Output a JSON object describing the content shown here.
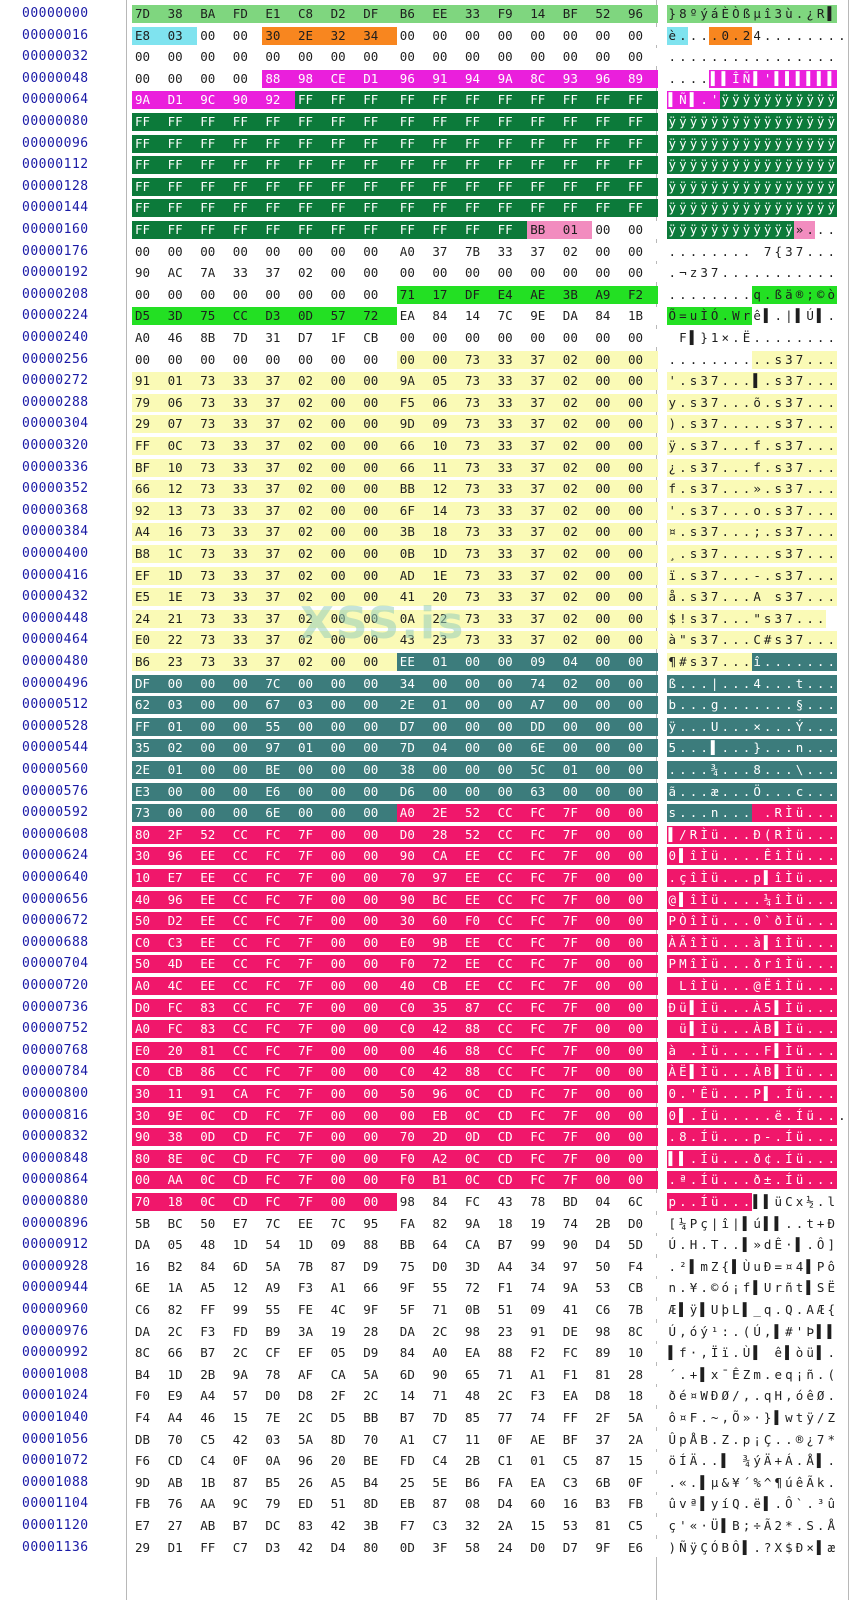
{
  "hex_editor": {
    "watermark": "XSS.is",
    "colors": {
      "lime": "#7fd67f",
      "cyan": "#7fe3ef",
      "orange": "#f8861f",
      "magenta": "#ea1fdc",
      "darkgreen": "#0c7a3a",
      "pink": "#f28cbf",
      "green": "#23e023",
      "yellow": "#fafab6",
      "teal": "#3c7c7c",
      "hotpink": "#f0176b",
      "white": "#ffffff"
    },
    "rows": [
      {
        "offset": "00000000",
        "bytes": "7D 38 BA FD E1 C8 D2 DF B6 EE 33 F9 14 BF 52 96",
        "ascii": "}8ºýáÈÒßµî3ù.¿R▌",
        "colors": "lime*16"
      },
      {
        "offset": "00000016",
        "bytes": "E8 03 00 00 30 2E 32 34 00 00 00 00 00 00 00 00",
        "ascii": "è....0.24........",
        "colors": "cyan,cyan,white,white,orange,orange,orange,orange,white*8"
      },
      {
        "offset": "00000032",
        "bytes": "00 00 00 00 00 00 00 00 00 00 00 00 00 00 00 00",
        "ascii": "................",
        "colors": "white*16"
      },
      {
        "offset": "00000048",
        "bytes": "00 00 00 00 88 98 CE D1 96 91 94 9A 8C 93 96 89",
        "ascii": "....▌▌ÎÑ▌'▌▌▌▌▌▌",
        "colors": "white*4,magenta*12"
      },
      {
        "offset": "00000064",
        "bytes": "9A D1 9C 90 92 FF FF FF FF FF FF FF FF FF FF FF",
        "ascii": "▌Ñ▌.'ÿÿÿÿÿÿÿÿÿÿÿ",
        "colors": "magenta*5,darkgreen*11"
      },
      {
        "offset": "00000080",
        "bytes": "FF FF FF FF FF FF FF FF FF FF FF FF FF FF FF FF",
        "ascii": "ÿÿÿÿÿÿÿÿÿÿÿÿÿÿÿÿ",
        "colors": "darkgreen*16"
      },
      {
        "offset": "00000096",
        "bytes": "FF FF FF FF FF FF FF FF FF FF FF FF FF FF FF FF",
        "ascii": "ÿÿÿÿÿÿÿÿÿÿÿÿÿÿÿÿ",
        "colors": "darkgreen*16"
      },
      {
        "offset": "00000112",
        "bytes": "FF FF FF FF FF FF FF FF FF FF FF FF FF FF FF FF",
        "ascii": "ÿÿÿÿÿÿÿÿÿÿÿÿÿÿÿÿ",
        "colors": "darkgreen*16"
      },
      {
        "offset": "00000128",
        "bytes": "FF FF FF FF FF FF FF FF FF FF FF FF FF FF FF FF",
        "ascii": "ÿÿÿÿÿÿÿÿÿÿÿÿÿÿÿÿ",
        "colors": "darkgreen*16"
      },
      {
        "offset": "00000144",
        "bytes": "FF FF FF FF FF FF FF FF FF FF FF FF FF FF FF FF",
        "ascii": "ÿÿÿÿÿÿÿÿÿÿÿÿÿÿÿÿ",
        "colors": "darkgreen*16"
      },
      {
        "offset": "00000160",
        "bytes": "FF FF FF FF FF FF FF FF FF FF FF FF BB 01 00 00",
        "ascii": "ÿÿÿÿÿÿÿÿÿÿÿÿ»...",
        "colors": "darkgreen*12,pink,pink,white,white"
      },
      {
        "offset": "00000176",
        "bytes": "00 00 00 00 00 00 00 00 A0 37 7B 33 37 02 00 00",
        "ascii": "........ 7{37...",
        "colors": "white*16"
      },
      {
        "offset": "00000192",
        "bytes": "90 AC 7A 33 37 02 00 00 00 00 00 00 00 00 00 00",
        "ascii": ".¬z37...........",
        "colors": "white*16"
      },
      {
        "offset": "00000208",
        "bytes": "00 00 00 00 00 00 00 00 71 17 DF E4 AE 3B A9 F2",
        "ascii": "........q.ßä®;©ò",
        "colors": "white*8,green*8"
      },
      {
        "offset": "00000224",
        "bytes": "D5 3D 75 CC D3 0D 57 72 EA 84 14 7C 9E DA 84 1B",
        "ascii": "Õ=uÌÓ.Wrê▌.|▌Ú▌.",
        "colors": "green*8,white*8"
      },
      {
        "offset": "00000240",
        "bytes": "A0 46 8B 7D 31 D7 1F CB 00 00 00 00 00 00 00 00",
        "ascii": " F▌}1×.Ë........",
        "colors": "white*16"
      },
      {
        "offset": "00000256",
        "bytes": "00 00 00 00 00 00 00 00 00 00 73 33 37 02 00 00",
        "ascii": "..........s37...",
        "colors": "white*8,yellow*8"
      },
      {
        "offset": "00000272",
        "bytes": "91 01 73 33 37 02 00 00 9A 05 73 33 37 02 00 00",
        "ascii": "'.s37...▌.s37...",
        "colors": "yellow*16"
      },
      {
        "offset": "00000288",
        "bytes": "79 06 73 33 37 02 00 00 F5 06 73 33 37 02 00 00",
        "ascii": "y.s37...õ.s37...",
        "colors": "yellow*16"
      },
      {
        "offset": "00000304",
        "bytes": "29 07 73 33 37 02 00 00 9D 09 73 33 37 02 00 00",
        "ascii": ").s37.....s37...",
        "colors": "yellow*16"
      },
      {
        "offset": "00000320",
        "bytes": "FF 0C 73 33 37 02 00 00 66 10 73 33 37 02 00 00",
        "ascii": "ÿ.s37...f.s37...",
        "colors": "yellow*16"
      },
      {
        "offset": "00000336",
        "bytes": "BF 10 73 33 37 02 00 00 66 11 73 33 37 02 00 00",
        "ascii": "¿.s37...f.s37...",
        "colors": "yellow*16"
      },
      {
        "offset": "00000352",
        "bytes": "66 12 73 33 37 02 00 00 BB 12 73 33 37 02 00 00",
        "ascii": "f.s37...».s37...",
        "colors": "yellow*16"
      },
      {
        "offset": "00000368",
        "bytes": "92 13 73 33 37 02 00 00 6F 14 73 33 37 02 00 00",
        "ascii": "'.s37...o.s37...",
        "colors": "yellow*16"
      },
      {
        "offset": "00000384",
        "bytes": "A4 16 73 33 37 02 00 00 3B 18 73 33 37 02 00 00",
        "ascii": "¤.s37...;.s37...",
        "colors": "yellow*16"
      },
      {
        "offset": "00000400",
        "bytes": "B8 1C 73 33 37 02 00 00 0B 1D 73 33 37 02 00 00",
        "ascii": "¸.s37.....s37...",
        "colors": "yellow*16"
      },
      {
        "offset": "00000416",
        "bytes": "EF 1D 73 33 37 02 00 00 AD 1E 73 33 37 02 00 00",
        "ascii": "ï.s37...-.s37...",
        "colors": "yellow*16"
      },
      {
        "offset": "00000432",
        "bytes": "E5 1E 73 33 37 02 00 00 41 20 73 33 37 02 00 00",
        "ascii": "å.s37...A s37...",
        "colors": "yellow*16"
      },
      {
        "offset": "00000448",
        "bytes": "24 21 73 33 37 02 00 00 0A 22 73 33 37 02 00 00",
        "ascii": "$!s37...\"s37...",
        "colors": "yellow*16"
      },
      {
        "offset": "00000464",
        "bytes": "E0 22 73 33 37 02 00 00 43 23 73 33 37 02 00 00",
        "ascii": "à\"s37...C#s37...",
        "colors": "yellow*16"
      },
      {
        "offset": "00000480",
        "bytes": "B6 23 73 33 37 02 00 00 EE 01 00 00 09 04 00 00",
        "ascii": "¶#s37...î.......",
        "colors": "yellow*8,teal*8"
      },
      {
        "offset": "00000496",
        "bytes": "DF 00 00 00 7C 00 00 00 34 00 00 00 74 02 00 00",
        "ascii": "ß...|...4...t...",
        "colors": "teal*16"
      },
      {
        "offset": "00000512",
        "bytes": "62 03 00 00 67 03 00 00 2E 01 00 00 A7 00 00 00",
        "ascii": "b...g.......§...",
        "colors": "teal*16"
      },
      {
        "offset": "00000528",
        "bytes": "FF 01 00 00 55 00 00 00 D7 00 00 00 DD 00 00 00",
        "ascii": "ÿ...U...×...Ý...",
        "colors": "teal*16"
      },
      {
        "offset": "00000544",
        "bytes": "35 02 00 00 97 01 00 00 7D 04 00 00 6E 00 00 00",
        "ascii": "5...▌...}...n...",
        "colors": "teal*16"
      },
      {
        "offset": "00000560",
        "bytes": "2E 01 00 00 BE 00 00 00 38 00 00 00 5C 01 00 00",
        "ascii": "....¾...8...\\...",
        "colors": "teal*16"
      },
      {
        "offset": "00000576",
        "bytes": "E3 00 00 00 E6 00 00 00 D6 00 00 00 63 00 00 00",
        "ascii": "ã...æ...Ö...c...",
        "colors": "teal*16"
      },
      {
        "offset": "00000592",
        "bytes": "73 00 00 00 6E 00 00 00 A0 2E 52 CC FC 7F 00 00",
        "ascii": "s...n... .RÌü...",
        "colors": "teal*8,hotpink*8"
      },
      {
        "offset": "00000608",
        "bytes": "80 2F 52 CC FC 7F 00 00 D0 28 52 CC FC 7F 00 00",
        "ascii": "▌/RÌü...Ð(RÌü...",
        "colors": "hotpink*16"
      },
      {
        "offset": "00000624",
        "bytes": "30 96 EE CC FC 7F 00 00 90 CA EE CC FC 7F 00 00",
        "ascii": "0▌îÌü....ÊîÌü...",
        "colors": "hotpink*16"
      },
      {
        "offset": "00000640",
        "bytes": "10 E7 EE CC FC 7F 00 00 70 97 EE CC FC 7F 00 00",
        "ascii": ".çîÌü...p▌îÌü...",
        "colors": "hotpink*16"
      },
      {
        "offset": "00000656",
        "bytes": "40 96 EE CC FC 7F 00 00 90 BC EE CC FC 7F 00 00",
        "ascii": "@▌îÌü....¼îÌü...",
        "colors": "hotpink*16"
      },
      {
        "offset": "00000672",
        "bytes": "50 D2 EE CC FC 7F 00 00 30 60 F0 CC FC 7F 00 00",
        "ascii": "PÒîÌü...0`ðÌü...",
        "colors": "hotpink*16"
      },
      {
        "offset": "00000688",
        "bytes": "C0 C3 EE CC FC 7F 00 00 E0 9B EE CC FC 7F 00 00",
        "ascii": "ÀÃîÌü...à▌îÌü...",
        "colors": "hotpink*16"
      },
      {
        "offset": "00000704",
        "bytes": "50 4D EE CC FC 7F 00 00 F0 72 EE CC FC 7F 00 00",
        "ascii": "PMîÌü...ðrîÌü...",
        "colors": "hotpink*16"
      },
      {
        "offset": "00000720",
        "bytes": "A0 4C EE CC FC 7F 00 00 40 CB EE CC FC 7F 00 00",
        "ascii": " LîÌü...@ËîÌü...",
        "colors": "hotpink*16"
      },
      {
        "offset": "00000736",
        "bytes": "D0 FC 83 CC FC 7F 00 00 C0 35 87 CC FC 7F 00 00",
        "ascii": "Ðü▌Ìü...À5▌Ìü...",
        "colors": "hotpink*16"
      },
      {
        "offset": "00000752",
        "bytes": "A0 FC 83 CC FC 7F 00 00 C0 42 88 CC FC 7F 00 00",
        "ascii": " ü▌Ìü...ÀB▌Ìü...",
        "colors": "hotpink*16"
      },
      {
        "offset": "00000768",
        "bytes": "E0 20 81 CC FC 7F 00 00 00 46 88 CC FC 7F 00 00",
        "ascii": "à .Ìü....F▌Ìü...",
        "colors": "hotpink*16"
      },
      {
        "offset": "00000784",
        "bytes": "C0 CB 86 CC FC 7F 00 00 C0 42 88 CC FC 7F 00 00",
        "ascii": "ÀË▌Ìü...ÀB▌Ìü...",
        "colors": "hotpink*16"
      },
      {
        "offset": "00000800",
        "bytes": "30 11 91 CA FC 7F 00 00 50 96 0C CD FC 7F 00 00",
        "ascii": "0.'Êü...P▌.Íü...",
        "colors": "hotpink*16"
      },
      {
        "offset": "00000816",
        "bytes": "30 9E 0C CD FC 7F 00 00 00 EB 0C CD FC 7F 00 00",
        "ascii": "0▌.Íü.....ë.Íü...",
        "colors": "hotpink*16"
      },
      {
        "offset": "00000832",
        "bytes": "90 38 0D CD FC 7F 00 00 70 2D 0D CD FC 7F 00 00",
        "ascii": ".8.Íü...p-.Íü...",
        "colors": "hotpink*16"
      },
      {
        "offset": "00000848",
        "bytes": "80 8E 0C CD FC 7F 00 00 F0 A2 0C CD FC 7F 00 00",
        "ascii": "▌▌.Íü...ð¢.Íü...",
        "colors": "hotpink*16"
      },
      {
        "offset": "00000864",
        "bytes": "00 AA 0C CD FC 7F 00 00 F0 B1 0C CD FC 7F 00 00",
        "ascii": ".ª.Íü...ð±.Íü...",
        "colors": "hotpink*16"
      },
      {
        "offset": "00000880",
        "bytes": "70 18 0C CD FC 7F 00 00 98 84 FC 43 78 BD 04 6C",
        "ascii": "p..Íü...▌▌üCx½.l",
        "colors": "hotpink*8,white*8"
      },
      {
        "offset": "00000896",
        "bytes": "5B BC 50 E7 7C EE 7C 95 FA 82 9A 18 19 74 2B D0",
        "ascii": "[¼Pç|î|▌ú▌▌..t+Ð",
        "colors": "white*16"
      },
      {
        "offset": "00000912",
        "bytes": "DA 05 48 1D 54 1D 09 88 BB 64 CA B7 99 90 D4 5D",
        "ascii": "Ú.H.T..▌»dÊ·▌.Ô]",
        "colors": "white*16"
      },
      {
        "offset": "00000928",
        "bytes": "16 B2 84 6D 5A 7B 87 D9 75 D0 3D A4 34 97 50 F4",
        "ascii": ".²▌mZ{▌ÙuÐ=¤4▌Pô",
        "colors": "white*16"
      },
      {
        "offset": "00000944",
        "bytes": "6E 1A A5 12 A9 F3 A1 66 9F 55 72 F1 74 9A 53 CB",
        "ascii": "n.¥.©ó¡f▌Urñt▌SË",
        "colors": "white*16"
      },
      {
        "offset": "00000960",
        "bytes": "C6 82 FF 99 55 FE 4C 9F 5F 71 0B 51 09 41 C6 7B",
        "ascii": "Æ▌ÿ▌UþL▌_q.Q.AÆ{",
        "colors": "white*16"
      },
      {
        "offset": "00000976",
        "bytes": "DA 2C F3 FD B9 3A 19 28 DA 2C 98 23 91 DE 98 8C",
        "ascii": "Ú,óý¹:.(Ú,▌#'Þ▌▌",
        "colors": "white*16"
      },
      {
        "offset": "00000992",
        "bytes": "8C 66 B7 2C CF EF 05 D9 84 A0 EA 88 F2 FC 89 10",
        "ascii": "▌f·,Ïï.Ù▌ ê▌òü▌.",
        "colors": "white*16"
      },
      {
        "offset": "00001008",
        "bytes": "B4 1D 2B 9A 78 AF CA 5A 6D 90 65 71 A1 F1 81 28",
        "ascii": "´.+▌x¯ÊZm.eq¡ñ.(",
        "colors": "white*16"
      },
      {
        "offset": "00001024",
        "bytes": "F0 E9 A4 57 D0 D8 2F 2C 14 71 48 2C F3 EA D8 18",
        "ascii": "ðé¤WÐØ/,.qH,óêØ.",
        "colors": "white*16"
      },
      {
        "offset": "00001040",
        "bytes": "F4 A4 46 15 7E 2C D5 BB B7 7D 85 77 74 FF 2F 5A",
        "ascii": "ô¤F.~,Õ»·}▌wtÿ/Z",
        "colors": "white*16"
      },
      {
        "offset": "00001056",
        "bytes": "DB 70 C5 42 03 5A 8D 70 A1 C7 11 0F AE BF 37 2A",
        "ascii": "ÛpÅB.Z.p¡Ç..®¿7*",
        "colors": "white*16"
      },
      {
        "offset": "00001072",
        "bytes": "F6 CD C4 0F 0A 96 20 BE FD C4 2B C1 01 C5 87 15",
        "ascii": "öÍÄ..▌ ¾ýÄ+Á.Å▌.",
        "colors": "white*16"
      },
      {
        "offset": "00001088",
        "bytes": "9D AB 1B 87 B5 26 A5 B4 25 5E B6 FA EA C3 6B 0F",
        "ascii": ".«.▌µ&¥´%^¶úêÃk.",
        "colors": "white*16"
      },
      {
        "offset": "00001104",
        "bytes": "FB 76 AA 9C 79 ED 51 8D EB 87 08 D4 60 16 B3 FB",
        "ascii": "ûvª▌yíQ.ë▌.Ô`.³û",
        "colors": "white*16"
      },
      {
        "offset": "00001120",
        "bytes": "E7 27 AB B7 DC 83 42 3B F7 C3 32 2A 15 53 81 C5",
        "ascii": "ç'«·Ü▌B;÷Ã2*.S.Å",
        "colors": "white*16"
      },
      {
        "offset": "00001136",
        "bytes": "29 D1 FF C7 D3 42 D4 80 0D 3F 58 24 D0 D7 9F E6",
        "ascii": ")ÑÿÇÓBÔ▌.?X$Ð×▌æ",
        "colors": "white*16"
      }
    ]
  }
}
